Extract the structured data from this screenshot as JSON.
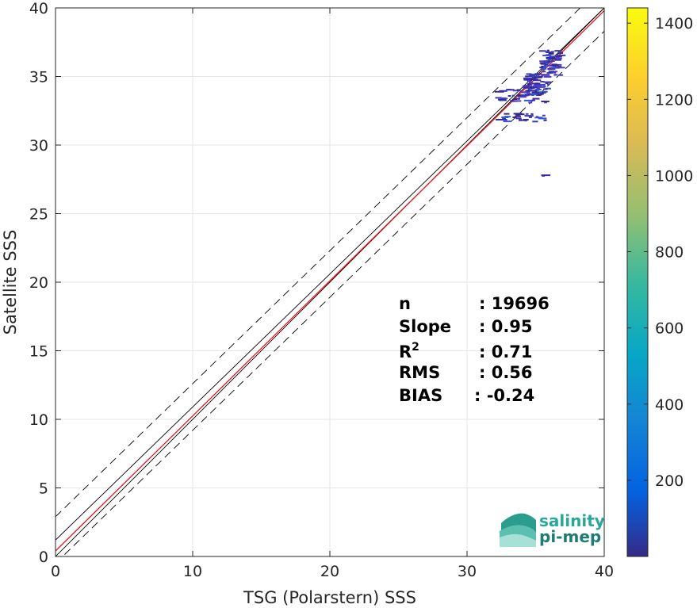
{
  "chart_data": {
    "type": "scatter",
    "xlabel": "TSG (Polarstern) SSS",
    "ylabel": "Satellite SSS",
    "xlim": [
      0,
      40
    ],
    "ylim": [
      0,
      40
    ],
    "xticks": [
      0,
      10,
      20,
      30,
      40
    ],
    "yticks": [
      0,
      5,
      10,
      15,
      20,
      25,
      30,
      35,
      40
    ],
    "grid": true,
    "reference_lines": {
      "one_to_one": {
        "intercept": 0,
        "slope": 1,
        "color": "#000000",
        "style": "solid"
      },
      "bias_line": {
        "intercept": 1.2,
        "slope": 0.97,
        "color": "#000000",
        "style": "solid"
      },
      "upper_bound": {
        "intercept": 2.9,
        "slope": 0.97,
        "color": "#000000",
        "style": "dashed"
      },
      "lower_bound": {
        "intercept": -0.5,
        "slope": 0.97,
        "color": "#000000",
        "style": "dashed"
      },
      "regression": {
        "intercept": 0.4,
        "slope": 0.985,
        "color": "#e8121b",
        "style": "solid"
      }
    },
    "density_clusters": [
      {
        "x": 35.1,
        "y": 34.4,
        "spread_x": 0.9,
        "spread_y": 0.8,
        "count": 70
      },
      {
        "x": 36.2,
        "y": 36.0,
        "spread_x": 0.7,
        "spread_y": 0.9,
        "count": 60
      },
      {
        "x": 34.0,
        "y": 33.6,
        "spread_x": 1.8,
        "spread_y": 0.5,
        "count": 40
      },
      {
        "x": 33.8,
        "y": 32.0,
        "spread_x": 2.0,
        "spread_y": 0.3,
        "count": 28
      },
      {
        "x": 35.6,
        "y": 27.8,
        "spread_x": 0.3,
        "spread_y": 0.05,
        "count": 2
      }
    ],
    "colorbar": {
      "min": 0,
      "max": 1440,
      "ticks": [
        200,
        400,
        600,
        800,
        1000,
        1200,
        1400
      ],
      "colors": [
        "#352a87",
        "#0363e1",
        "#1485d4",
        "#06a7c6",
        "#38b99e",
        "#92bf73",
        "#d9ba56",
        "#fcce2e",
        "#f9fb0e"
      ]
    },
    "stats": [
      {
        "label": "n",
        "value": ": 19696"
      },
      {
        "label": "Slope",
        "value": ": 0.95"
      },
      {
        "label": "R",
        "sup": "2",
        "value": ": 0.71"
      },
      {
        "label": "RMS",
        "value": ": 0.56"
      },
      {
        "label": "BIAS",
        "value": ": -0.24"
      }
    ]
  },
  "logo": {
    "line1": "salinity",
    "line2": "pi-mep",
    "color1": "#2aa79b",
    "color2": "#1d7c74"
  }
}
